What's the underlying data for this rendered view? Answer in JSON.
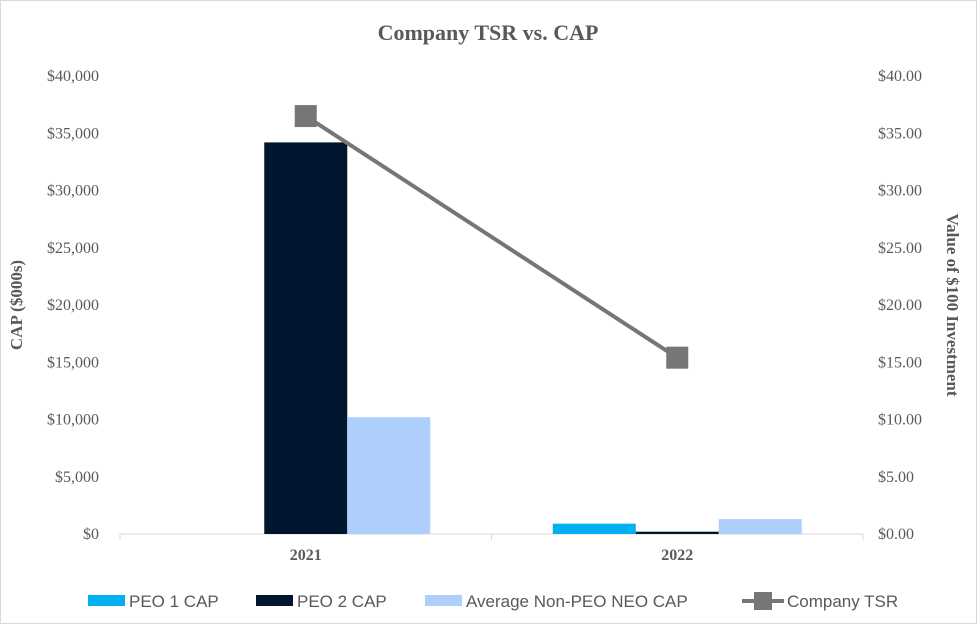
{
  "chart_data": {
    "type": "bar",
    "title": "Company TSR vs. CAP",
    "categories": [
      "2021",
      "2022"
    ],
    "ylabel": "CAP ($000s)",
    "y2label": "Value of $100 Investment",
    "ylim": [
      0,
      40000
    ],
    "y2lim": [
      0,
      40
    ],
    "y_ticks": [
      "$0",
      "$5,000",
      "$10,000",
      "$15,000",
      "$20,000",
      "$25,000",
      "$30,000",
      "$35,000",
      "$40,000"
    ],
    "y2_ticks": [
      "$0.00",
      "$5.00",
      "$10.00",
      "$15.00",
      "$20.00",
      "$25.00",
      "$30.00",
      "$35.00",
      "$40.00"
    ],
    "grid": false,
    "legend_position": "bottom",
    "series": [
      {
        "name": "PEO 1 CAP",
        "kind": "bar",
        "axis": "left",
        "color": "#00b0f0",
        "values": [
          0,
          900
        ]
      },
      {
        "name": "PEO 2 CAP",
        "kind": "bar",
        "axis": "left",
        "color": "#00162e",
        "values": [
          34200,
          200
        ]
      },
      {
        "name": "Average Non-PEO NEO CAP",
        "kind": "bar",
        "axis": "left",
        "color": "#aecffb",
        "values": [
          10200,
          1300
        ]
      },
      {
        "name": "Company TSR",
        "kind": "line",
        "axis": "right",
        "color": "#767676",
        "marker": "square",
        "values": [
          36.5,
          15.4
        ]
      }
    ]
  }
}
